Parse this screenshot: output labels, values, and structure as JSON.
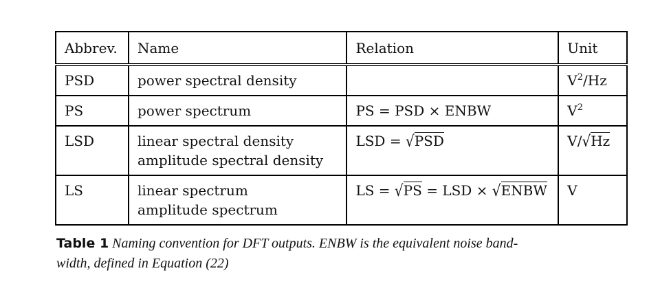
{
  "table": {
    "headers": [
      "Abbrev.",
      "Name",
      "Relation",
      "Unit"
    ],
    "rows": [
      {
        "abbrev": "PSD",
        "names": [
          "power spectral density"
        ],
        "relation": "",
        "unit": {
          "base": "V",
          "sup": "2",
          "rest": "/Hz"
        }
      },
      {
        "abbrev": "PS",
        "names": [
          "power spectrum"
        ],
        "relation": "PS = PSD × ENBW",
        "unit": {
          "base": "V",
          "sup": "2",
          "rest": ""
        }
      },
      {
        "abbrev": "LSD",
        "names": [
          "linear spectral density",
          "amplitude spectral density"
        ],
        "relation": {
          "lhs": "LSD = ",
          "radicand": "PSD"
        },
        "unit": {
          "base": "V/",
          "radicand": "Hz"
        }
      },
      {
        "abbrev": "LS",
        "names": [
          "linear spectrum",
          "amplitude spectrum"
        ],
        "relation": {
          "lhs": "LS = ",
          "radicand1": "PS",
          "mid": " = LSD × ",
          "radicand2": "ENBW"
        },
        "unit": {
          "base": "V"
        }
      }
    ]
  },
  "caption": {
    "number": "Table 1",
    "line1": "Naming convention for DFT outputs. ENBW is the equivalent noise band-",
    "line2": "width, defined in Equation (22)"
  },
  "symbols": {
    "sqrt": "√"
  }
}
